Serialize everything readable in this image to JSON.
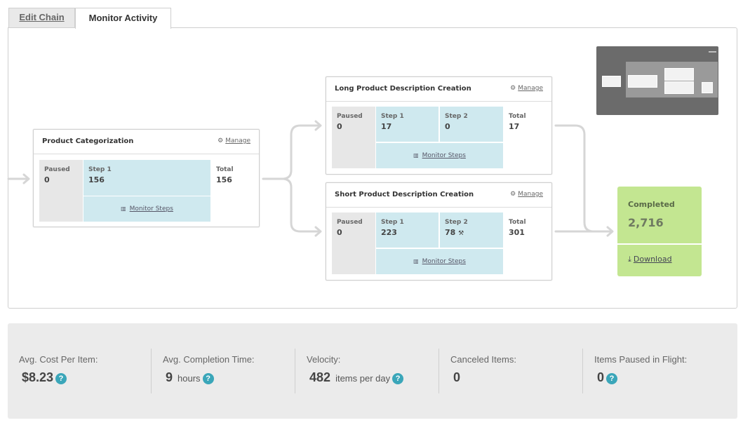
{
  "tabs": {
    "edit_chain": "Edit Chain",
    "monitor_activity": "Monitor Activity"
  },
  "stages": {
    "product_categorization": {
      "title": "Product Categorization",
      "manage": "Manage",
      "paused_label": "Paused",
      "paused_value": "0",
      "steps": [
        {
          "label": "Step 1",
          "value": "156"
        }
      ],
      "total_label": "Total",
      "total_value": "156",
      "monitor_steps": "Monitor Steps"
    },
    "long_description": {
      "title": "Long Product Description Creation",
      "manage": "Manage",
      "paused_label": "Paused",
      "paused_value": "0",
      "steps": [
        {
          "label": "Step 1",
          "value": "17"
        },
        {
          "label": "Step 2",
          "value": "0"
        }
      ],
      "total_label": "Total",
      "total_value": "17",
      "monitor_steps": "Monitor Steps"
    },
    "short_description": {
      "title": "Short Product Description Creation",
      "manage": "Manage",
      "paused_label": "Paused",
      "paused_value": "0",
      "steps": [
        {
          "label": "Step 1",
          "value": "223"
        },
        {
          "label": "Step 2",
          "value": "78"
        }
      ],
      "total_label": "Total",
      "total_value": "301",
      "monitor_steps": "Monitor Steps"
    }
  },
  "completed": {
    "label": "Completed",
    "value": "2,716",
    "download": "Download"
  },
  "minimap": {
    "collapse_symbol": "—"
  },
  "stats": {
    "avg_cost": {
      "label": "Avg. Cost Per Item:",
      "value": "$8.23"
    },
    "avg_completion": {
      "label": "Avg. Completion Time:",
      "value": "9",
      "unit": "hours"
    },
    "velocity": {
      "label": "Velocity:",
      "value": "482",
      "unit": "items per day"
    },
    "canceled": {
      "label": "Canceled Items:",
      "value": "0"
    },
    "paused_in_flight": {
      "label": "Items Paused in Flight:",
      "value": "0"
    }
  },
  "colors": {
    "step_bg": "#cfe9ef",
    "paused_bg": "#e7e7e7",
    "completed_bg": "#c3e691",
    "help_icon": "#3aa6b9"
  },
  "icons": {
    "manage": "gears-icon",
    "monitor": "bar-chart-icon",
    "download": "download-icon",
    "help": "question-icon",
    "step_alert": "gavel-icon"
  }
}
